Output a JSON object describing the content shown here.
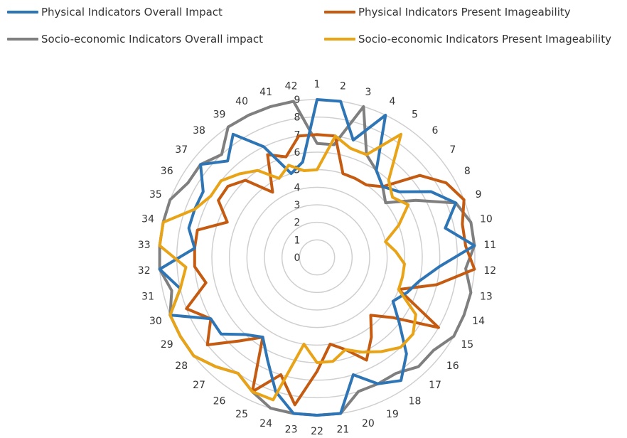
{
  "chart_data": {
    "type": "radar",
    "categories": [
      "1",
      "2",
      "3",
      "4",
      "5",
      "6",
      "7",
      "8",
      "9",
      "10",
      "11",
      "12",
      "13",
      "14",
      "15",
      "16",
      "17",
      "18",
      "19",
      "20",
      "21",
      "22",
      "23",
      "24",
      "25",
      "26",
      "27",
      "28",
      "29",
      "30",
      "31",
      "32",
      "33",
      "34",
      "35",
      "36",
      "37",
      "38",
      "39",
      "40",
      "41",
      "42"
    ],
    "rlim": [
      0,
      9
    ],
    "ticks": [
      "0",
      "1",
      "2",
      "3",
      "4",
      "5",
      "6",
      "7",
      "8",
      "9"
    ],
    "grid": true,
    "legend_position": "top",
    "series": [
      {
        "name": "Physical Indicators Overall Impact",
        "color": "#2E75B6",
        "values": [
          9,
          9,
          7,
          9,
          6,
          5.5,
          6,
          7.5,
          8.5,
          7.5,
          9,
          7,
          6,
          5.5,
          5,
          6,
          7.5,
          8.5,
          8,
          7,
          9,
          9,
          9,
          8,
          6.5,
          5.5,
          6,
          7,
          7,
          9,
          8,
          9,
          7,
          7.5,
          7.5,
          7.5,
          8.5,
          7.5,
          8.5,
          7,
          5,
          5.5
        ]
      },
      {
        "name": "Physical Indicators Present Imageability",
        "color": "#C55A11",
        "values": [
          7,
          7,
          5,
          5,
          5,
          5.5,
          7.5,
          8.5,
          9,
          8.5,
          8.5,
          9,
          7,
          5,
          8,
          5.5,
          4.5,
          5.5,
          6.5,
          5.5,
          5,
          6.5,
          8.5,
          7,
          8.5,
          5.5,
          6.5,
          8,
          7,
          8,
          6.5,
          7,
          7,
          7,
          5.5,
          6.5,
          6.5,
          6,
          4.5,
          6.5,
          6,
          7
        ]
      },
      {
        "name": "Socio-economic Indicators Overall impact",
        "color": "#7F7F7F",
        "values": [
          6.5,
          6.5,
          9,
          6.5,
          6,
          5.5,
          5,
          6.5,
          8.5,
          9,
          9,
          8.5,
          9,
          9,
          9,
          8.5,
          8.5,
          8,
          8,
          8,
          9,
          9,
          9,
          9,
          8.5,
          8,
          8.5,
          9,
          9,
          9,
          8.5,
          9,
          9,
          9,
          9,
          8.5,
          8.5,
          8,
          9,
          9,
          9,
          9
        ]
      },
      {
        "name": "Socio-economic Indicators Present Imageability",
        "color": "#E8A317",
        "values": [
          5,
          7,
          6.5,
          6.5,
          8.5,
          6,
          5.5,
          6,
          5,
          4,
          4.5,
          5,
          5,
          5,
          6.5,
          7,
          7,
          6.5,
          6,
          5.5,
          6,
          6,
          5,
          8.5,
          8.5,
          8,
          8.5,
          9,
          9,
          9,
          8,
          7.5,
          9,
          9,
          7.5,
          7,
          7,
          6.5,
          6,
          5,
          5.5,
          5
        ]
      }
    ]
  }
}
